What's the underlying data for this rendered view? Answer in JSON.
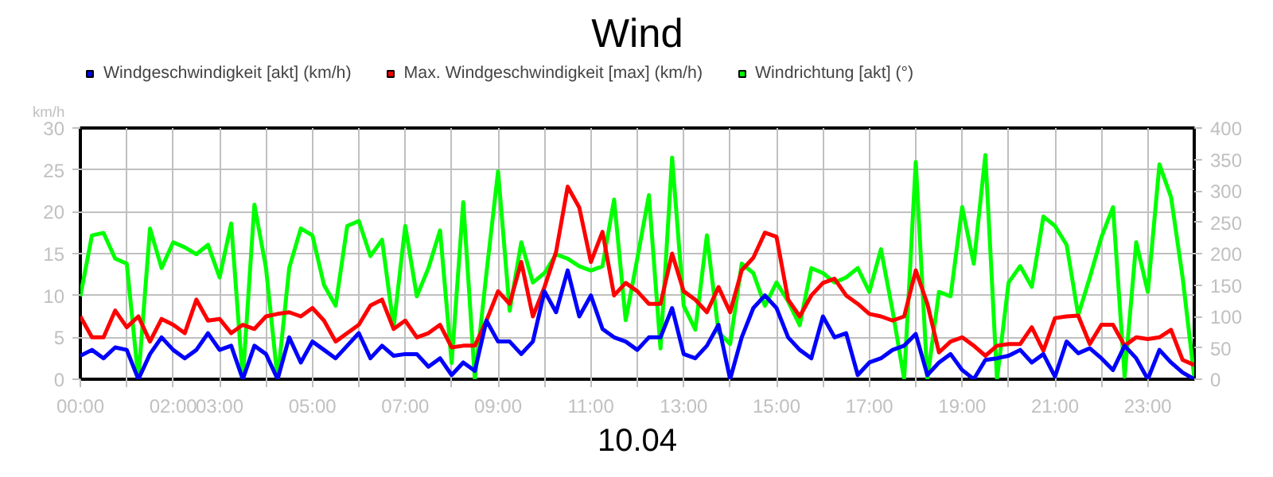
{
  "chart_data": {
    "type": "line",
    "title": "Wind",
    "xlabel": "10.04",
    "ylabel": "km/h",
    "x": [
      0,
      0.25,
      0.5,
      0.75,
      1,
      1.25,
      1.5,
      1.75,
      2,
      2.25,
      2.5,
      2.75,
      3,
      3.25,
      3.5,
      3.75,
      4,
      4.25,
      4.5,
      4.75,
      5,
      5.25,
      5.5,
      5.75,
      6,
      6.25,
      6.5,
      6.75,
      7,
      7.25,
      7.5,
      7.75,
      8,
      8.25,
      8.5,
      8.75,
      9,
      9.25,
      9.5,
      9.75,
      10,
      10.25,
      10.5,
      10.75,
      11,
      11.25,
      11.5,
      11.75,
      12,
      12.25,
      12.5,
      12.75,
      13,
      13.25,
      13.5,
      13.75,
      14,
      14.25,
      14.5,
      14.75,
      15,
      15.25,
      15.5,
      15.75,
      16,
      16.25,
      16.5,
      16.75,
      17,
      17.25,
      17.5,
      17.75,
      18,
      18.25,
      18.5,
      18.75,
      19,
      19.25,
      19.5,
      19.75,
      20,
      20.25,
      20.5,
      20.75,
      21,
      21.25,
      21.5,
      21.75,
      22,
      22.25,
      22.5,
      22.75,
      23,
      23.25,
      23.5,
      23.75,
      24
    ],
    "xlim": [
      0,
      24
    ],
    "xticks": [
      {
        "value": 0,
        "label": "00:00"
      },
      {
        "value": 1,
        "label": null
      },
      {
        "value": 2,
        "label": "02:00"
      },
      {
        "value": 3,
        "label": "03:00"
      },
      {
        "value": 4,
        "label": null
      },
      {
        "value": 5,
        "label": "05:00"
      },
      {
        "value": 6,
        "label": null
      },
      {
        "value": 7,
        "label": "07:00"
      },
      {
        "value": 8,
        "label": null
      },
      {
        "value": 9,
        "label": "09:00"
      },
      {
        "value": 10,
        "label": null
      },
      {
        "value": 11,
        "label": "11:00"
      },
      {
        "value": 12,
        "label": null
      },
      {
        "value": 13,
        "label": "13:00"
      },
      {
        "value": 14,
        "label": null
      },
      {
        "value": 15,
        "label": "15:00"
      },
      {
        "value": 16,
        "label": null
      },
      {
        "value": 17,
        "label": "17:00"
      },
      {
        "value": 18,
        "label": null
      },
      {
        "value": 19,
        "label": "19:00"
      },
      {
        "value": 20,
        "label": null
      },
      {
        "value": 21,
        "label": "21:00"
      },
      {
        "value": 22,
        "label": null
      },
      {
        "value": 23,
        "label": "23:00"
      }
    ],
    "ylim": [
      0,
      30
    ],
    "yticks": [
      0,
      5,
      10,
      15,
      20,
      25,
      30
    ],
    "y2lim": [
      0,
      400
    ],
    "y2ticks": [
      0,
      50,
      100,
      150,
      200,
      250,
      300,
      350,
      400
    ],
    "grid": true,
    "legend": "top left",
    "series": [
      {
        "name": "Windrichtung [akt] (°)",
        "color": "#00ff00",
        "axis": "y2",
        "values": [
          132,
          229,
          233,
          192,
          184,
          0,
          240,
          177,
          218,
          210,
          199,
          214,
          162,
          248,
          0,
          278,
          177,
          0,
          177,
          240,
          229,
          150,
          117,
          244,
          252,
          196,
          222,
          83,
          244,
          132,
          177,
          237,
          26,
          282,
          0,
          169,
          331,
          109,
          218,
          154,
          169,
          199,
          192,
          180,
          173,
          180,
          286,
          94,
          192,
          293,
          49,
          353,
          117,
          79,
          229,
          75,
          56,
          184,
          169,
          117,
          154,
          124,
          86,
          177,
          169,
          154,
          162,
          177,
          139,
          207,
          109,
          0,
          346,
          0,
          139,
          132,
          274,
          184,
          357,
          0,
          154,
          180,
          147,
          259,
          244,
          214,
          102,
          162,
          226,
          274,
          4,
          218,
          139,
          342,
          290,
          162,
          4
        ]
      },
      {
        "name": "Max. Windgeschwindigkeit [max] (km/h)",
        "color": "#ff0000",
        "values": [
          7.5,
          5,
          5,
          8.2,
          6.2,
          7.5,
          4.5,
          7.2,
          6.5,
          5.5,
          9.5,
          7.0,
          7.2,
          5.5,
          6.5,
          6,
          7.5,
          7.8,
          8.0,
          7.5,
          8.5,
          7,
          4.5,
          5.5,
          6.5,
          8.8,
          9.5,
          6,
          7,
          5,
          5.5,
          6.5,
          3.8,
          4,
          4,
          7,
          10.5,
          9,
          14,
          7.5,
          11,
          15.2,
          23,
          20.5,
          14,
          17.6,
          10,
          11.5,
          10.5,
          9,
          9,
          15,
          10.5,
          9.5,
          8,
          11,
          8,
          13,
          14.5,
          17.5,
          17,
          9.5,
          7.5,
          10,
          11.5,
          12,
          10,
          9,
          7.8,
          7.5,
          7,
          7.5,
          13,
          9,
          3.2,
          4.5,
          5,
          4,
          2.8,
          4,
          4.2,
          4.2,
          6.2,
          3.4,
          7.3,
          7.5,
          7.6,
          4.2,
          6.5,
          6.5,
          4,
          5,
          4.8,
          5,
          5.9,
          2.3,
          1.7
        ]
      },
      {
        "name": "Windgeschwindigkeit [akt] (km/h)",
        "color": "#0000ff",
        "values": [
          2.8,
          3.5,
          2.5,
          3.8,
          3.5,
          0,
          3.0,
          5.0,
          3.5,
          2.5,
          3.5,
          5.5,
          3.5,
          4.0,
          0,
          4.0,
          3.0,
          0,
          5.0,
          2.0,
          4.5,
          3.5,
          2.5,
          4.0,
          5.5,
          2.5,
          4.0,
          2.8,
          3.0,
          3.0,
          1.5,
          2.5,
          0.5,
          2,
          1,
          7,
          4.5,
          4.5,
          3,
          4.5,
          10.5,
          8,
          13,
          7.5,
          10,
          6,
          5,
          4.5,
          3.5,
          5,
          5,
          8.5,
          3,
          2.5,
          4,
          6.5,
          0,
          5,
          8.5,
          10,
          8.5,
          5,
          3.5,
          2.5,
          7.5,
          5,
          5.5,
          0.5,
          2,
          2.5,
          3.5,
          4,
          5.4,
          0.5,
          2,
          3,
          1.1,
          0,
          2.3,
          2.5,
          2.8,
          3.5,
          2,
          3,
          0.3,
          4.5,
          3.1,
          3.7,
          2.5,
          1.1,
          4,
          2.5,
          0,
          3.5,
          2,
          0.8,
          0
        ]
      }
    ]
  }
}
